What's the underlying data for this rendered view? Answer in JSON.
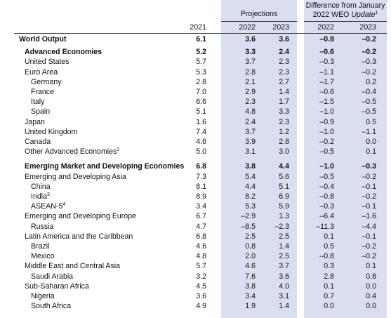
{
  "header": {
    "projections": "Projections",
    "difference_line1": "Difference from January",
    "difference_line2_prefix": "2022 WEO ",
    "difference_line2_italic": "Update",
    "difference_sup": "1",
    "years": [
      "2021",
      "2022",
      "2023",
      "2022",
      "2023"
    ]
  },
  "rows": [
    {
      "label": "World Output",
      "values": [
        "6.1",
        "3.6",
        "3.6",
        "–0.8",
        "–0.2"
      ],
      "bold": true,
      "indent": 0
    },
    {
      "label": "Advanced Economies",
      "values": [
        "5.2",
        "3.3",
        "2.4",
        "–0.6",
        "–0.2"
      ],
      "bold": true,
      "indent": 1
    },
    {
      "label": "United States",
      "values": [
        "5.7",
        "3.7",
        "2.3",
        "–0.3",
        "–0.3"
      ],
      "bold": false,
      "indent": 1
    },
    {
      "label": "Euro Area",
      "values": [
        "5.3",
        "2.8",
        "2.3",
        "–1.1",
        "–0.2"
      ],
      "bold": false,
      "indent": 1
    },
    {
      "label": "Germany",
      "values": [
        "2.8",
        "2.1",
        "2.7",
        "–1.7",
        "0.2"
      ],
      "bold": false,
      "indent": 2
    },
    {
      "label": "France",
      "values": [
        "7.0",
        "2.9",
        "1.4",
        "–0.6",
        "–0.4"
      ],
      "bold": false,
      "indent": 2
    },
    {
      "label": "Italy",
      "values": [
        "6.6",
        "2.3",
        "1.7",
        "–1.5",
        "–0.5"
      ],
      "bold": false,
      "indent": 2
    },
    {
      "label": "Spain",
      "values": [
        "5.1",
        "4.8",
        "3.3",
        "–1.0",
        "–0.5"
      ],
      "bold": false,
      "indent": 2
    },
    {
      "label": "Japan",
      "values": [
        "1.6",
        "2.4",
        "2.3",
        "–0.9",
        "0.5"
      ],
      "bold": false,
      "indent": 1
    },
    {
      "label": "United Kingdom",
      "values": [
        "7.4",
        "3.7",
        "1.2",
        "–1.0",
        "–1.1"
      ],
      "bold": false,
      "indent": 1
    },
    {
      "label": "Canada",
      "values": [
        "4.6",
        "3.9",
        "2.8",
        "–0.2",
        "0.0"
      ],
      "bold": false,
      "indent": 1
    },
    {
      "label": "Other Advanced Economies",
      "sup": "2",
      "values": [
        "5.0",
        "3.1",
        "3.0",
        "–0.5",
        "0.1"
      ],
      "bold": false,
      "indent": 1
    },
    {
      "label": "Emerging Market and Developing Economies",
      "values": [
        "6.8",
        "3.8",
        "4.4",
        "–1.0",
        "–0.3"
      ],
      "bold": true,
      "indent": 1,
      "gap": true
    },
    {
      "label": "Emerging and Developing Asia",
      "values": [
        "7.3",
        "5.4",
        "5.6",
        "–0.5",
        "–0.2"
      ],
      "bold": false,
      "indent": 1
    },
    {
      "label": "China",
      "values": [
        "8.1",
        "4.4",
        "5.1",
        "–0.4",
        "–0.1"
      ],
      "bold": false,
      "indent": 2
    },
    {
      "label": "India",
      "sup": "3",
      "values": [
        "8.9",
        "8.2",
        "6.9",
        "–0.8",
        "–0.2"
      ],
      "bold": false,
      "indent": 2
    },
    {
      "label": "ASEAN-5",
      "sup": "4",
      "values": [
        "3.4",
        "5.3",
        "5.9",
        "–0.3",
        "–0.1"
      ],
      "bold": false,
      "indent": 2
    },
    {
      "label": "Emerging and Developing Europe",
      "values": [
        "6.7",
        "–2.9",
        "1.3",
        "–6.4",
        "–1.6"
      ],
      "bold": false,
      "indent": 1
    },
    {
      "label": "Russia",
      "values": [
        "4.7",
        "–8.5",
        "–2.3",
        "–11.3",
        "–4.4"
      ],
      "bold": false,
      "indent": 2
    },
    {
      "label": "Latin America and the Caribbean",
      "values": [
        "6.8",
        "2.5",
        "2.5",
        "0.1",
        "–0.1"
      ],
      "bold": false,
      "indent": 1
    },
    {
      "label": "Brazil",
      "values": [
        "4.6",
        "0.8",
        "1.4",
        "0.5",
        "–0.2"
      ],
      "bold": false,
      "indent": 2
    },
    {
      "label": "Mexico",
      "values": [
        "4.8",
        "2.0",
        "2.5",
        "–0.8",
        "–0.2"
      ],
      "bold": false,
      "indent": 2
    },
    {
      "label": "Middle East and Central Asia",
      "values": [
        "5.7",
        "4.6",
        "3.7",
        "0.3",
        "0.1"
      ],
      "bold": false,
      "indent": 1
    },
    {
      "label": "Saudi Arabia",
      "values": [
        "3.2",
        "7.6",
        "3.6",
        "2.8",
        "0.8"
      ],
      "bold": false,
      "indent": 2
    },
    {
      "label": "Sub-Saharan Africa",
      "values": [
        "4.5",
        "3.8",
        "4.0",
        "0.1",
        "0.0"
      ],
      "bold": false,
      "indent": 1
    },
    {
      "label": "Nigeria",
      "values": [
        "3.6",
        "3.4",
        "3.1",
        "0.7",
        "0.4"
      ],
      "bold": false,
      "indent": 2
    },
    {
      "label": "South Africa",
      "values": [
        "4.9",
        "1.9",
        "1.4",
        "0.0",
        "0.0"
      ],
      "bold": false,
      "indent": 2
    }
  ]
}
